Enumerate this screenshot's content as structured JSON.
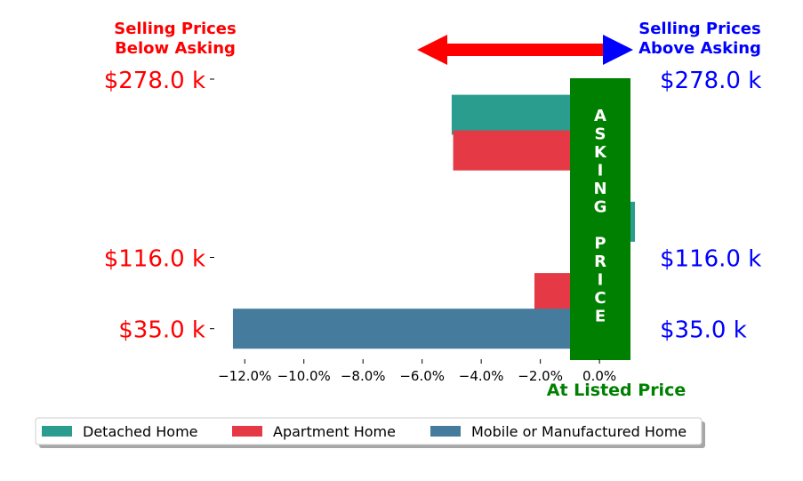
{
  "chart_data": {
    "type": "bar",
    "orientation": "horizontal",
    "x_tick_labels": [
      "−12.0%",
      "−10.0%",
      "−8.0%",
      "−6.0%",
      "−4.0%",
      "−2.0%",
      "0.0%"
    ],
    "x_ticks": [
      -12,
      -10,
      -8,
      -6,
      -4,
      -2,
      0
    ],
    "xlim": [
      -13.0,
      1.2
    ],
    "xlabel": "At Listed Price",
    "left_label": "Selling Prices\nBelow Asking",
    "right_label": "Selling Prices\nAbove Asking",
    "asking_text": "ASKING PRICE",
    "y_labels": [
      {
        "text": "$278.0 k",
        "row": 0
      },
      {
        "text": "$116.0 k",
        "row": 5
      },
      {
        "text": "$35.0 k",
        "row": 7
      }
    ],
    "bars": [
      {
        "series": "Detached Home",
        "value": -5.0,
        "row": 1
      },
      {
        "series": "Apartment Home",
        "value": -4.95,
        "row": 2
      },
      {
        "series": "Detached Home",
        "value": 1.2,
        "row": 4
      },
      {
        "series": "Apartment Home",
        "value": -2.2,
        "row": 6
      },
      {
        "series": "Mobile or Manufactured Home",
        "value": -12.4,
        "row": 7
      }
    ],
    "series": [
      {
        "name": "Detached Home",
        "color": "#2a9d8f"
      },
      {
        "name": "Apartment Home",
        "color": "#e63946"
      },
      {
        "name": "Mobile or Manufactured Home",
        "color": "#457b9d"
      }
    ],
    "legend": {
      "position": "bottom",
      "entries": [
        "Detached Home",
        "Apartment Home",
        "Mobile or Manufactured Home"
      ]
    },
    "colors": {
      "below": "#ff0000",
      "above": "#0000ff",
      "asking": "#008000",
      "xlabel": "#008000"
    }
  }
}
